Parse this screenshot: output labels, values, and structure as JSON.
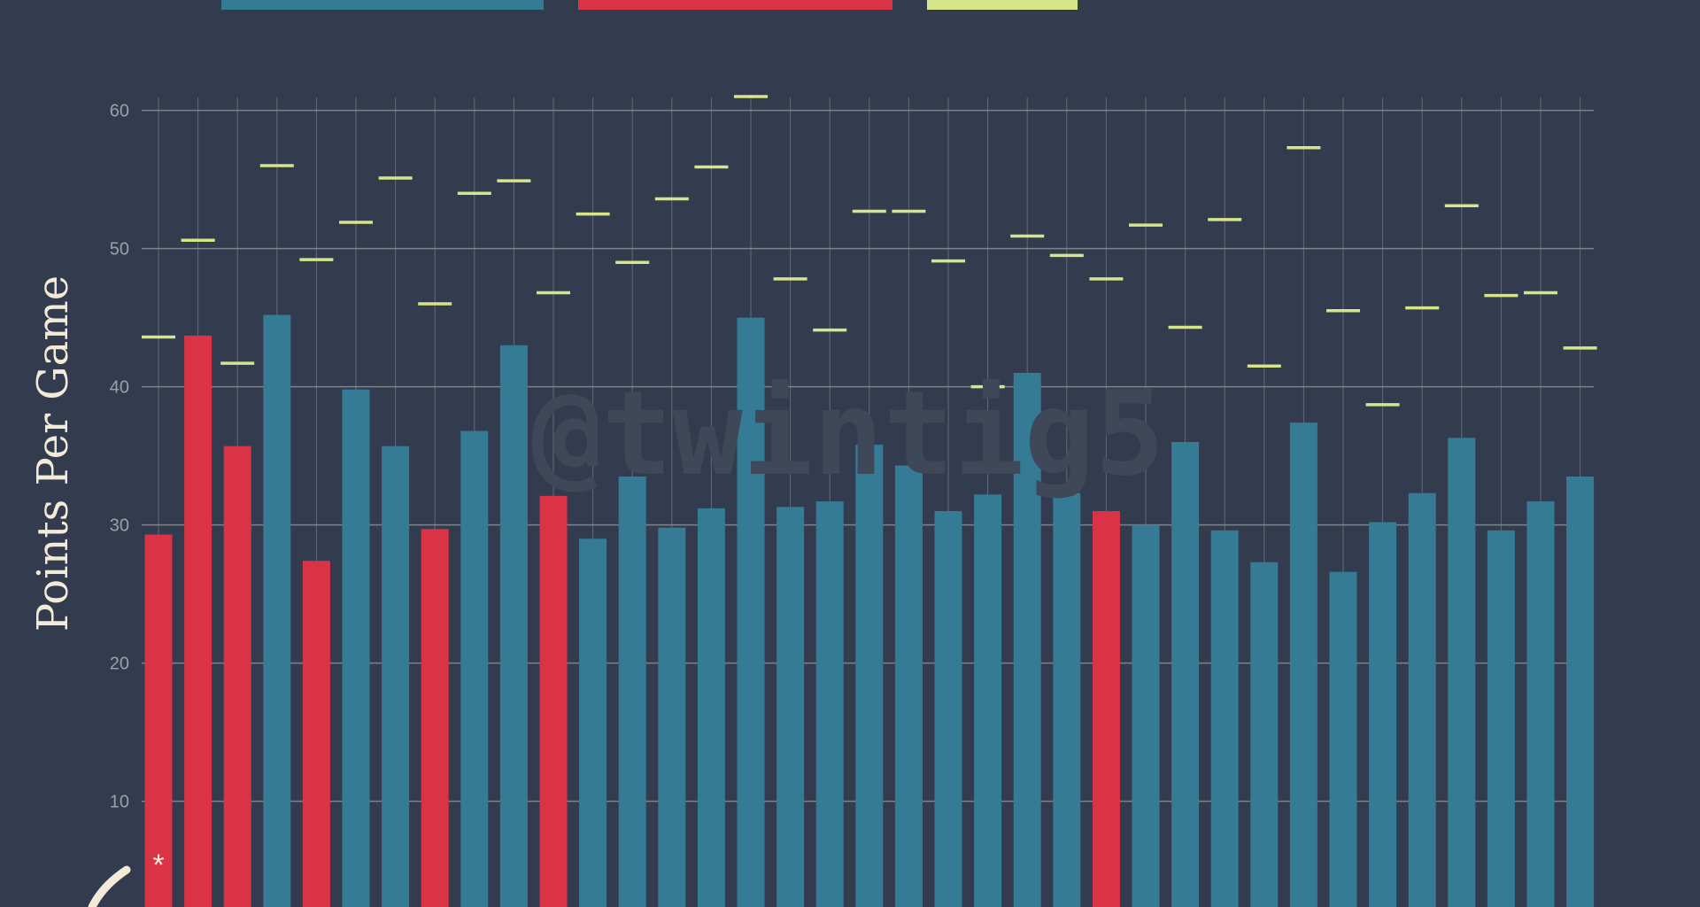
{
  "chart_data": {
    "type": "bar",
    "ylabel": "Points Per Game",
    "ylim": [
      0,
      61
    ],
    "yticks": [
      10,
      20,
      30,
      40,
      50,
      60
    ],
    "grid": true,
    "watermark": "@twintig5",
    "footnote_marker": "*",
    "legend": {
      "placement": "top",
      "colors": [
        "#367b96",
        "#d93345",
        "#d7e58a"
      ]
    },
    "colors": {
      "blue": "#367b96",
      "red": "#d93345",
      "marker": "#d7e58a",
      "background": "#323c4e",
      "grid": "#8a8f99",
      "tick_text": "#9aa0aa",
      "label": "#f3ead8"
    },
    "series": [
      {
        "values": [
          29.3,
          43.7,
          35.7,
          45.2,
          27.4,
          39.8,
          35.7,
          29.7,
          36.8,
          43.0,
          32.1,
          29.0,
          33.5,
          29.8,
          31.2,
          45.0,
          31.3,
          31.7,
          35.8,
          34.3,
          31.0,
          32.2,
          41.0,
          32.3,
          31.0,
          30.0,
          36.0,
          29.6,
          27.3,
          37.4,
          26.6,
          30.2,
          32.3,
          36.3,
          29.6,
          31.7,
          33.5
        ],
        "bar_colors": [
          "red",
          "red",
          "red",
          "blue",
          "red",
          "blue",
          "blue",
          "red",
          "blue",
          "blue",
          "red",
          "blue",
          "blue",
          "blue",
          "blue",
          "blue",
          "blue",
          "blue",
          "blue",
          "blue",
          "blue",
          "blue",
          "blue",
          "blue",
          "red",
          "blue",
          "blue",
          "blue",
          "blue",
          "blue",
          "blue",
          "blue",
          "blue",
          "blue",
          "blue",
          "blue",
          "blue"
        ]
      },
      {
        "type": "marker",
        "values": [
          43.6,
          50.6,
          41.7,
          56.0,
          49.2,
          51.9,
          55.1,
          46.0,
          54.0,
          54.9,
          46.8,
          52.5,
          49.0,
          53.6,
          55.9,
          61.0,
          47.8,
          44.1,
          52.7,
          52.7,
          49.1,
          40.0,
          50.9,
          49.5,
          47.8,
          51.7,
          44.3,
          52.1,
          41.5,
          57.3,
          45.5,
          38.7,
          45.7,
          53.1,
          46.6,
          46.8,
          42.8
        ]
      }
    ]
  }
}
